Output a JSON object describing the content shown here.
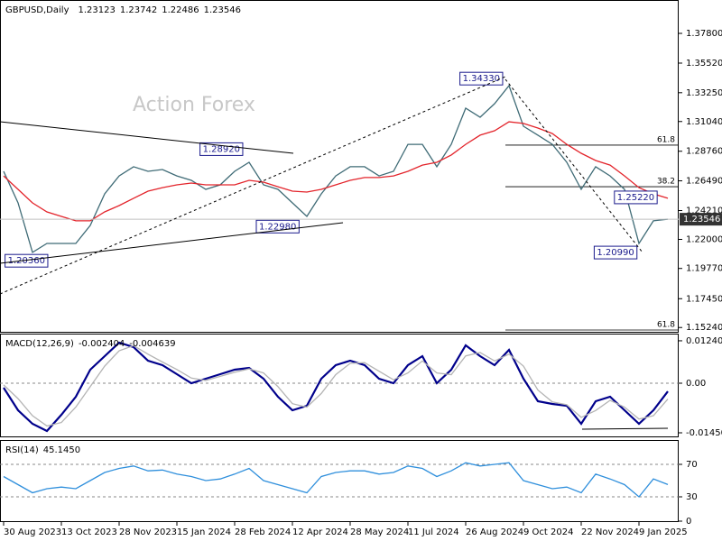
{
  "chart_data": [
    {
      "type": "line",
      "title": "GBPUSD,Daily",
      "readout": [
        1.23123,
        1.23742,
        1.22486,
        1.23546
      ],
      "watermark": "Action Forex",
      "xlim": [
        -0.25,
        46.75
      ],
      "ylim": [
        1.1491,
        1.4036
      ],
      "yticks": [
        {
          "value": 1.378,
          "label": "1.37800"
        },
        {
          "value": 1.3552,
          "label": "1.35520"
        },
        {
          "value": 1.3325,
          "label": "1.33250"
        },
        {
          "value": 1.3104,
          "label": "1.31040"
        },
        {
          "value": 1.2876,
          "label": "1.28760"
        },
        {
          "value": 1.2649,
          "label": "1.26490"
        },
        {
          "value": 1.2421,
          "label": "1.24210"
        },
        {
          "value": 1.22,
          "label": "1.22000"
        },
        {
          "value": 1.1977,
          "label": "1.19770"
        },
        {
          "value": 1.1745,
          "label": "1.17450"
        },
        {
          "value": 1.1524,
          "label": "1.15240"
        }
      ],
      "series": [
        {
          "color": "#3f6b76",
          "values": [
            1.2722,
            1.248,
            1.21,
            1.2169,
            1.2169,
            1.2169,
            1.2307,
            1.2549,
            1.2687,
            1.2757,
            1.2722,
            1.2736,
            1.2687,
            1.2653,
            1.2584,
            1.2618,
            1.2722,
            1.2791,
            1.2618,
            1.2584,
            1.248,
            1.2376,
            1.2549,
            1.2687,
            1.2757,
            1.2757,
            1.2687,
            1.2722,
            1.2929,
            1.2929,
            1.2757,
            1.2929,
            1.3206,
            1.3137,
            1.3241,
            1.3379,
            1.3068,
            1.2999,
            1.2929,
            1.2791,
            1.2584,
            1.2757,
            1.2687,
            1.2584,
            1.2169,
            1.2342,
            1.2355
          ]
        },
        {
          "color": "#e3242b",
          "values": [
            1.2687,
            1.2584,
            1.248,
            1.2411,
            1.2376,
            1.2342,
            1.2342,
            1.2411,
            1.2459,
            1.2515,
            1.257,
            1.2597,
            1.2618,
            1.2632,
            1.2618,
            1.2618,
            1.2618,
            1.2653,
            1.2639,
            1.2604,
            1.257,
            1.2563,
            1.2584,
            1.2618,
            1.2653,
            1.2674,
            1.2674,
            1.2687,
            1.2722,
            1.277,
            1.2791,
            1.2847,
            1.2929,
            1.2999,
            1.3033,
            1.3102,
            1.3089,
            1.3054,
            1.3012,
            1.2929,
            1.286,
            1.2805,
            1.277,
            1.2687,
            1.2597,
            1.2549,
            1.2515
          ]
        }
      ],
      "annotations": [
        {
          "x": 0.1,
          "value": 1.2036,
          "label": "1.20360"
        },
        {
          "x": 13.6,
          "value": 1.2892,
          "label": "1.28920"
        },
        {
          "x": 17.5,
          "value": 1.2298,
          "label": "1.22980"
        },
        {
          "x": 31.6,
          "value": 1.3433,
          "label": "1.34330"
        },
        {
          "x": 40.9,
          "value": 1.2099,
          "label": "1.20990"
        },
        {
          "x": 42.3,
          "value": 1.2522,
          "label": "1.25220"
        }
      ],
      "fib": [
        {
          "label": 61.8,
          "value": 1.2923
        },
        {
          "label": 38.2,
          "value": 1.2604
        },
        {
          "label": 61.8,
          "value": 1.1505
        }
      ]
    },
    {
      "type": "line",
      "title": "MACD(12,26,9)",
      "readout": [
        -0.002404,
        -0.004639
      ],
      "xlim": [
        -0.25,
        46.75
      ],
      "ylim": [
        -0.01556,
        0.0145
      ],
      "yticks": [
        0.012403,
        {
          "value": 0,
          "label": "0.00"
        },
        -0.014502
      ],
      "levels": [
        0
      ],
      "series": [
        {
          "color": "#00008b",
          "values": [
            -0.00132,
            -0.00791,
            -0.01187,
            -0.01398,
            -0.00923,
            -0.00396,
            0.00396,
            0.00791,
            0.01187,
            0.01055,
            0.00659,
            0.00527,
            0.00264,
            0,
            0.00132,
            0.00264,
            0.00396,
            0.00448,
            0.00132,
            -0.00396,
            -0.00791,
            -0.00659,
            0.00132,
            0.00527,
            0.00659,
            0.00527,
            0.00132,
            0,
            0.00527,
            0.00791,
            0,
            0.00396,
            0.01108,
            0.00791,
            0.00527,
            0.00976,
            0.00132,
            -0.00527,
            -0.00607,
            -0.00659,
            -0.01187,
            -0.00527,
            -0.00396,
            -0.00791,
            -0.01187,
            -0.00791,
            -0.002404
          ]
        },
        {
          "color": "#b4b4b4",
          "values": [
            -0.0005,
            -0.0045,
            -0.0095,
            -0.0125,
            -0.0115,
            -0.007,
            -0.001,
            0.005,
            0.0095,
            0.011,
            0.0085,
            0.0062,
            0.004,
            0.0015,
            0.0008,
            0.002,
            0.0032,
            0.0042,
            0.003,
            -0.001,
            -0.006,
            -0.007,
            -0.003,
            0.0025,
            0.0058,
            0.006,
            0.0035,
            0.001,
            0.003,
            0.0065,
            0.003,
            0.0025,
            0.008,
            0.009,
            0.0065,
            0.0085,
            0.005,
            -0.002,
            -0.0055,
            -0.0063,
            -0.01,
            -0.008,
            -0.005,
            -0.007,
            -0.0105,
            -0.0095,
            -0.004639
          ]
        }
      ]
    },
    {
      "type": "line",
      "title": "RSI(14)",
      "readout": [
        {
          "value": 45.145,
          "label": "45.1450"
        }
      ],
      "xlim": [
        -0.25,
        46.75
      ],
      "ylim": [
        0,
        100
      ],
      "yticks": [
        70,
        30,
        0
      ],
      "levels": [
        70,
        30
      ],
      "xticks": [
        {
          "value": 0,
          "label": "30 Aug 2023"
        },
        {
          "value": 4,
          "label": "13 Oct 2023"
        },
        {
          "value": 8,
          "label": "28 Nov 2023"
        },
        {
          "value": 12,
          "label": "15 Jan 2024"
        },
        {
          "value": 16,
          "label": "28 Feb 2024"
        },
        {
          "value": 20,
          "label": "12 Apr 2024"
        },
        {
          "value": 24,
          "label": "28 May 2024"
        },
        {
          "value": 28,
          "label": "11 Jul 2024"
        },
        {
          "value": 32,
          "label": "26 Aug 2024"
        },
        {
          "value": 36,
          "label": "9 Oct 2024"
        },
        {
          "value": 40,
          "label": "22 Nov 2024"
        },
        {
          "value": 44,
          "label": "9 Jan 2025"
        }
      ],
      "series": [
        {
          "color": "#2f8fdc",
          "values": [
            55,
            45,
            35,
            40,
            42,
            40,
            50,
            60,
            65,
            68,
            62,
            63,
            58,
            55,
            50,
            52,
            58,
            65,
            50,
            45,
            40,
            35,
            55,
            60,
            62,
            62,
            58,
            60,
            68,
            65,
            55,
            62,
            72,
            68,
            70,
            72,
            50,
            45,
            40,
            42,
            35,
            58,
            52,
            45,
            30,
            52,
            45.145
          ]
        }
      ]
    }
  ]
}
